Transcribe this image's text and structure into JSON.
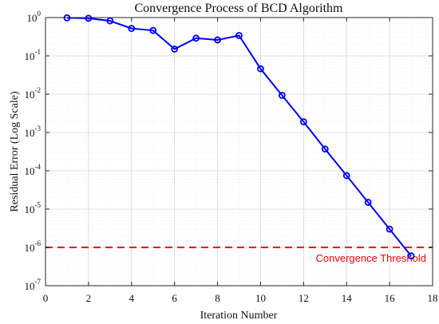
{
  "chart_data": {
    "type": "line",
    "title": "Convergence Process of BCD Algorithm",
    "xlabel": "Iteration Number",
    "ylabel": "Residual Error (Log Scale)",
    "xlim": [
      0,
      18
    ],
    "ylim": [
      1e-07,
      1
    ],
    "y_scale": "log",
    "grid": true,
    "x_ticks": [
      0,
      2,
      4,
      6,
      8,
      10,
      12,
      14,
      16,
      18
    ],
    "y_ticks": [
      {
        "value": 1,
        "base": "10",
        "exp": "0"
      },
      {
        "value": 0.1,
        "base": "10",
        "exp": "-1"
      },
      {
        "value": 0.01,
        "base": "10",
        "exp": "-2"
      },
      {
        "value": 0.001,
        "base": "10",
        "exp": "-3"
      },
      {
        "value": 0.0001,
        "base": "10",
        "exp": "-4"
      },
      {
        "value": 1e-05,
        "base": "10",
        "exp": "-5"
      },
      {
        "value": 1e-06,
        "base": "10",
        "exp": "-6"
      },
      {
        "value": 1e-07,
        "base": "10",
        "exp": "-7"
      }
    ],
    "series": [
      {
        "color": "#0000ff",
        "marker": "circle",
        "x": [
          1,
          2,
          3,
          4,
          5,
          6,
          7,
          8,
          9,
          10,
          11,
          12,
          13,
          14,
          15,
          16,
          17
        ],
        "values": [
          0.98,
          0.96,
          0.82,
          0.52,
          0.46,
          0.15,
          0.29,
          0.26,
          0.34,
          0.046,
          0.0093,
          0.0019,
          0.00037,
          7.5e-05,
          1.5e-05,
          3e-06,
          6e-07
        ]
      }
    ],
    "threshold": {
      "value": 1e-06,
      "label": "Convergence Threshold",
      "color": "#ff0000",
      "style": "dashed"
    }
  }
}
